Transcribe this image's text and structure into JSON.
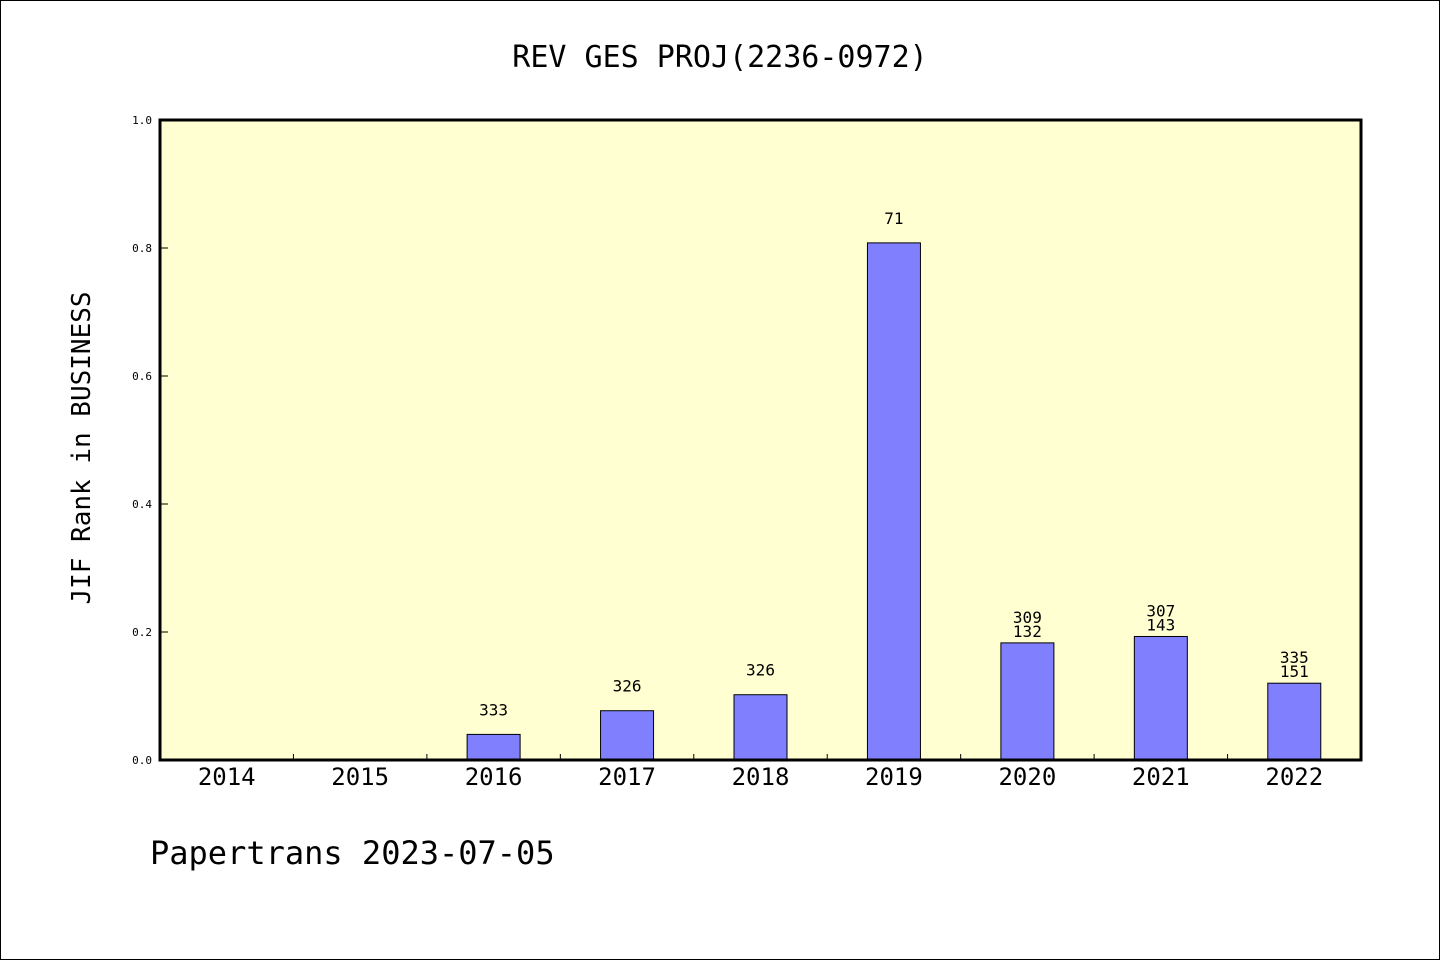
{
  "chart_data": {
    "type": "bar",
    "title": "REV GES PROJ(2236-0972)",
    "ylabel": "JIF Rank in BUSINESS",
    "xlabel": "",
    "ylim": [
      0.0,
      1.0
    ],
    "yticks": [
      0.0,
      0.2,
      0.4,
      0.6,
      0.8,
      1.0
    ],
    "ytick_labels": [
      "0.0",
      "0.2",
      "0.4",
      "0.6",
      "0.8",
      "1.0"
    ],
    "categories": [
      "2014",
      "2015",
      "2016",
      "2017",
      "2018",
      "2019",
      "2020",
      "2021",
      "2022"
    ],
    "values": [
      null,
      null,
      0.04,
      0.077,
      0.102,
      0.808,
      0.183,
      0.193,
      0.12
    ],
    "bar_labels": [
      [],
      [],
      [
        "333"
      ],
      [
        "326"
      ],
      [
        "326"
      ],
      [
        "71"
      ],
      [
        "309",
        "132"
      ],
      [
        "307",
        "143"
      ],
      [
        "335",
        "151"
      ]
    ],
    "grid": false,
    "colors": {
      "plot_background": "#ffffd2",
      "bar_fill": "#8080ff",
      "bar_edge": "#000000"
    }
  },
  "footer": {
    "text": "Papertrans 2023-07-05"
  }
}
